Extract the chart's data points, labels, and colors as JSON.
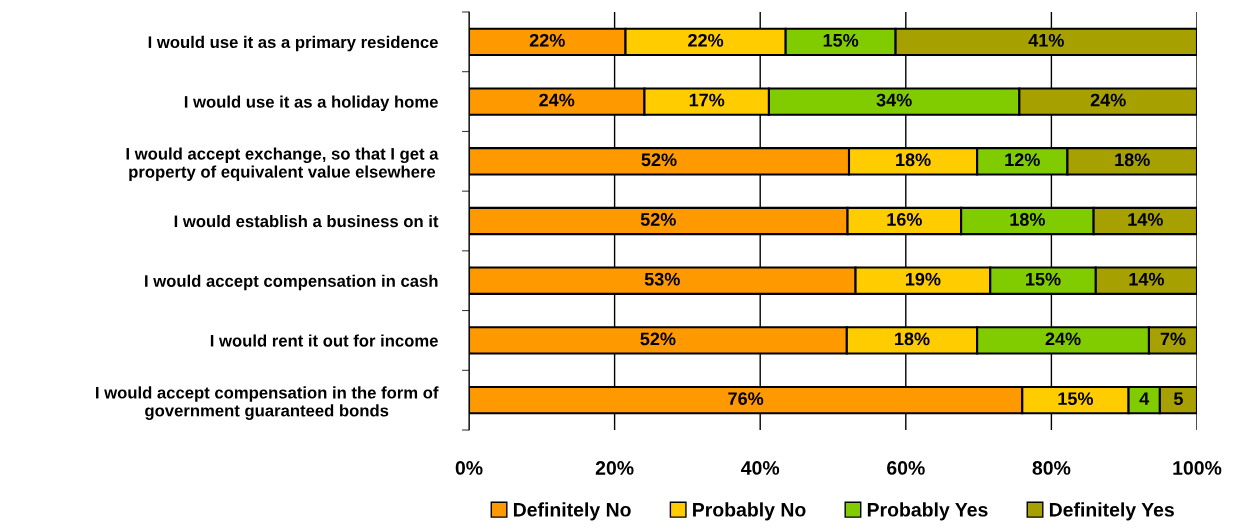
{
  "chart_data": {
    "type": "bar",
    "orientation": "horizontal",
    "stacked": true,
    "categories": [
      "I would use it as a primary residence",
      "I would use it as a holiday home",
      "I would accept exchange, so that I get a\nproperty of equivalent value elsewhere",
      "I would establish a business on it",
      "I would accept compensation in cash",
      "I would rent it out for income",
      "I would accept compensation in the form of\ngovernment guaranteed bonds"
    ],
    "series": [
      {
        "name": "Definitely No",
        "color": "#ff9900",
        "values": [
          21.5,
          24.1,
          52.2,
          52.0,
          53.1,
          51.9,
          76.0
        ],
        "value_labels": [
          "22%",
          "24%",
          "52%",
          "52%",
          "53%",
          "52%",
          "76%"
        ]
      },
      {
        "name": "Probably No",
        "color": "#ffcc00",
        "values": [
          22.0,
          17.1,
          17.6,
          15.6,
          18.5,
          17.9,
          14.6
        ],
        "value_labels": [
          "22%",
          "17%",
          "18%",
          "16%",
          "19%",
          "18%",
          "15%"
        ]
      },
      {
        "name": "Probably Yes",
        "color": "#80cc00",
        "values": [
          15.1,
          34.4,
          12.4,
          18.2,
          14.5,
          23.6,
          4.3
        ],
        "value_labels": [
          "15%",
          "34%",
          "12%",
          "18%",
          "15%",
          "24%",
          "4"
        ]
      },
      {
        "name": "Definitely Yes",
        "color": "#a6a000",
        "values": [
          41.4,
          24.4,
          17.8,
          14.2,
          13.9,
          6.6,
          5.1
        ],
        "value_labels": [
          "41%",
          "24%",
          "18%",
          "14%",
          "14%",
          "7%",
          "5"
        ]
      }
    ],
    "xlim": [
      0,
      100
    ],
    "xticks": [
      {
        "value": 0,
        "label": "0%"
      },
      {
        "value": 20,
        "label": "20%"
      },
      {
        "value": 40,
        "label": "40%"
      },
      {
        "value": 60,
        "label": "60%"
      },
      {
        "value": 80,
        "label": "80%"
      },
      {
        "value": 100,
        "label": "100%"
      }
    ],
    "grid": "x",
    "legend": "bottom"
  }
}
